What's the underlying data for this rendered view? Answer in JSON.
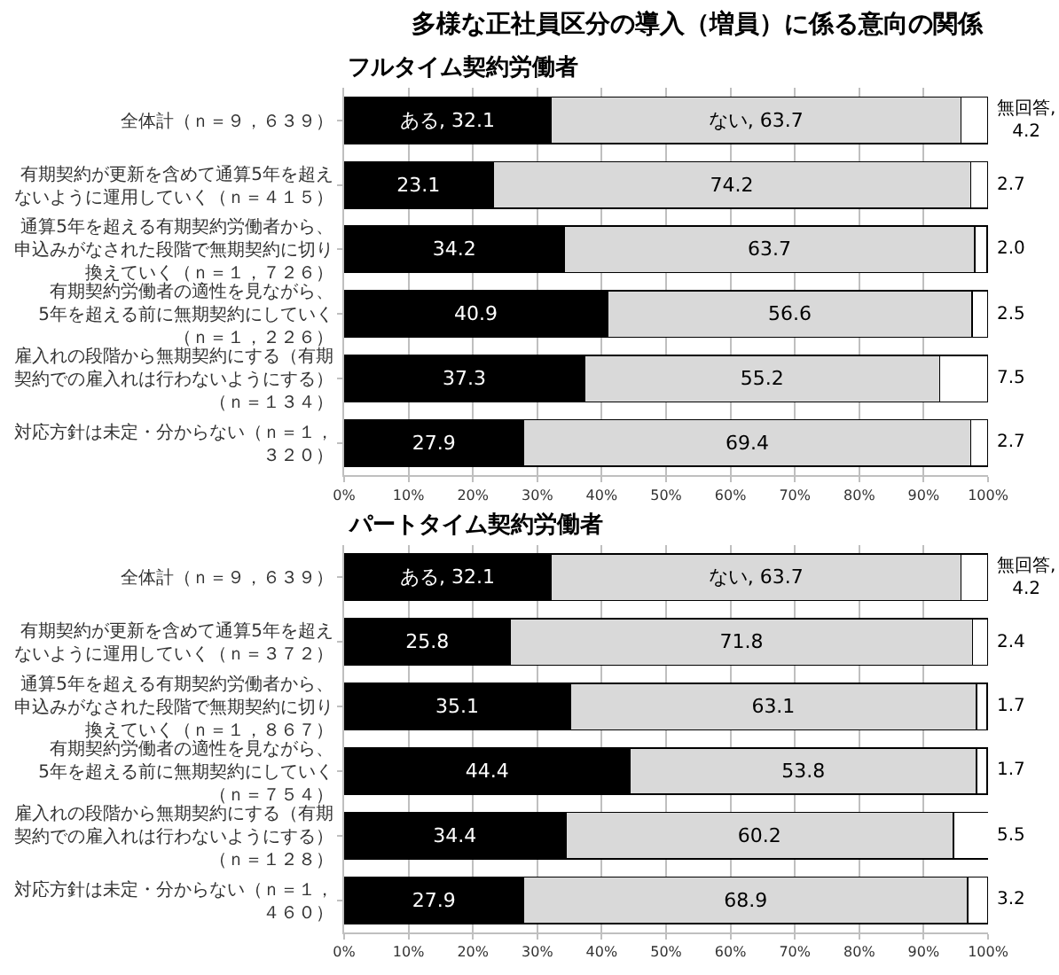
{
  "chart_data": [
    {
      "type": "bar",
      "orientation": "horizontal",
      "stacked": true,
      "title": "多様な正社員区分の導入（増員）に係る意向の関係",
      "subtitle": "フルタイム契約労働者",
      "categories": [
        "全体計（ｎ＝９，６３９）",
        "有期契約が更新を含めて通算5年を超えないように運用していく（ｎ＝４１５）",
        "通算5年を超える有期契約労働者から、申込みがなされた段階で無期契約に切り換えていく（ｎ＝１，７２６）",
        "有期契約労働者の適性を見ながら、5年を超える前に無期契約にしていく（ｎ＝１，２２６）",
        "雇入れの段階から無期契約にする（有期契約での雇入れは行わないようにする）（ｎ＝１３４）",
        "対応方針は未定・分からない（ｎ＝１，３２０）"
      ],
      "series": [
        {
          "color": "#000000",
          "values": [
            32.1,
            23.1,
            34.2,
            40.9,
            37.3,
            27.9
          ],
          "value_labels": [
            "ある, 32.1",
            "23.1",
            "34.2",
            "40.9",
            "37.3",
            "27.9"
          ]
        },
        {
          "color": "#d9d9d9",
          "values": [
            63.7,
            74.2,
            63.7,
            56.6,
            55.2,
            69.4
          ],
          "value_labels": [
            "ない, 63.7",
            "74.2",
            "63.7",
            "56.6",
            "55.2",
            "69.4"
          ]
        },
        {
          "color": "#ffffff",
          "values": [
            4.2,
            2.7,
            2.0,
            2.5,
            7.5,
            2.7
          ],
          "value_labels": [
            "無回答,4.2",
            "2.7",
            "2.0",
            "2.5",
            "7.5",
            "2.7"
          ]
        }
      ],
      "xlim": [
        0,
        100
      ],
      "xticks": [
        {
          "value": 0,
          "label": "0%"
        },
        {
          "value": 10,
          "label": "10%"
        },
        {
          "value": 20,
          "label": "20%"
        },
        {
          "value": 30,
          "label": "30%"
        },
        {
          "value": 40,
          "label": "40%"
        },
        {
          "value": 50,
          "label": "50%"
        },
        {
          "value": 60,
          "label": "60%"
        },
        {
          "value": 70,
          "label": "70%"
        },
        {
          "value": 80,
          "label": "80%"
        },
        {
          "value": 90,
          "label": "90%"
        },
        {
          "value": 100,
          "label": "100%"
        }
      ],
      "grid": "x"
    },
    {
      "type": "bar",
      "orientation": "horizontal",
      "stacked": true,
      "subtitle": "パートタイム契約労働者",
      "categories": [
        "全体計（ｎ＝９，６３９）",
        "有期契約が更新を含めて通算5年を超えないように運用していく（ｎ＝３７２）",
        "通算5年を超える有期契約労働者から、申込みがなされた段階で無期契約に切り換えていく（ｎ＝１，８６７）",
        "有期契約労働者の適性を見ながら、5年を超える前に無期契約にしていく（ｎ＝７５４）",
        "雇入れの段階から無期契約にする（有期契約での雇入れは行わないようにする）（ｎ＝１２８）",
        "対応方針は未定・分からない（ｎ＝１，４６０）"
      ],
      "series": [
        {
          "color": "#000000",
          "values": [
            32.1,
            25.8,
            35.1,
            44.4,
            34.4,
            27.9
          ],
          "value_labels": [
            "ある, 32.1",
            "25.8",
            "35.1",
            "44.4",
            "34.4",
            "27.9"
          ]
        },
        {
          "color": "#d9d9d9",
          "values": [
            63.7,
            71.8,
            63.1,
            53.8,
            60.2,
            68.9
          ],
          "value_labels": [
            "ない, 63.7",
            "71.8",
            "63.1",
            "53.8",
            "60.2",
            "68.9"
          ]
        },
        {
          "color": "#ffffff",
          "values": [
            4.2,
            2.4,
            1.7,
            1.7,
            5.5,
            3.2
          ],
          "value_labels": [
            "無回答,4.2",
            "2.4",
            "1.7",
            "1.7",
            "5.5",
            "3.2"
          ]
        }
      ],
      "xlim": [
        0,
        100
      ],
      "xticks": [
        {
          "value": 0,
          "label": "0%"
        },
        {
          "value": 10,
          "label": "10%"
        },
        {
          "value": 20,
          "label": "20%"
        },
        {
          "value": 30,
          "label": "30%"
        },
        {
          "value": 40,
          "label": "40%"
        },
        {
          "value": 50,
          "label": "50%"
        },
        {
          "value": 60,
          "label": "60%"
        },
        {
          "value": 70,
          "label": "70%"
        },
        {
          "value": 80,
          "label": "80%"
        },
        {
          "value": 90,
          "label": "90%"
        },
        {
          "value": 100,
          "label": "100%"
        }
      ],
      "grid": "x"
    }
  ]
}
